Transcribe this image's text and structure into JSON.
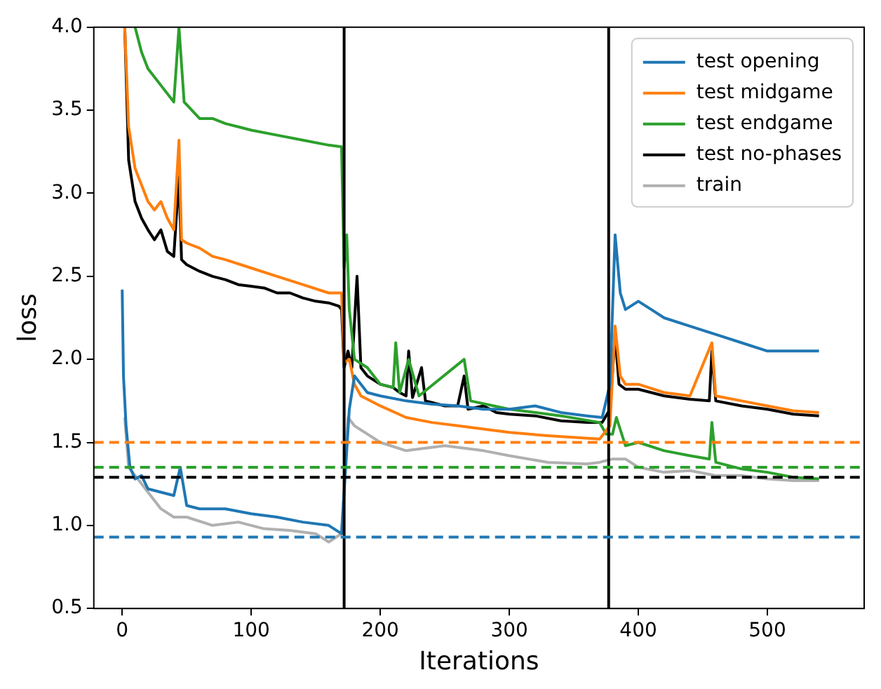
{
  "chart_data": {
    "type": "line",
    "xlabel": "Iterations",
    "ylabel": "loss",
    "xlim": [
      -22,
      575
    ],
    "ylim": [
      0.5,
      4.0
    ],
    "xticks": [
      0,
      100,
      200,
      300,
      400,
      500
    ],
    "yticks": [
      {
        "value": 0.5,
        "label": "0.5"
      },
      {
        "value": 1,
        "label": "1.0"
      },
      {
        "value": 1.5,
        "label": "1.5"
      },
      {
        "value": 2,
        "label": "2.0"
      },
      {
        "value": 2.5,
        "label": "2.5"
      },
      {
        "value": 3,
        "label": "3.0"
      },
      {
        "value": 3.5,
        "label": "3.5"
      },
      {
        "value": 4,
        "label": "4.0"
      }
    ],
    "grid": false,
    "legend": "top right",
    "marker": "none",
    "line_style": "solid",
    "series": [
      {
        "name": "test opening",
        "color": "#1f77b4",
        "x": [
          0,
          1,
          3,
          6,
          10,
          15,
          20,
          30,
          40,
          45,
          50,
          60,
          80,
          100,
          120,
          140,
          160,
          170,
          172,
          176,
          180,
          190,
          200,
          220,
          240,
          260,
          280,
          300,
          320,
          340,
          360,
          372,
          378,
          382,
          386,
          390,
          400,
          410,
          420,
          440,
          460,
          480,
          500,
          520,
          540
        ],
        "values": [
          2.42,
          1.9,
          1.6,
          1.35,
          1.28,
          1.3,
          1.22,
          1.2,
          1.18,
          1.35,
          1.12,
          1.1,
          1.1,
          1.07,
          1.05,
          1.02,
          1.0,
          0.95,
          1.2,
          1.7,
          1.9,
          1.8,
          1.78,
          1.75,
          1.73,
          1.72,
          1.7,
          1.7,
          1.72,
          1.68,
          1.66,
          1.65,
          1.85,
          2.75,
          2.4,
          2.3,
          2.35,
          2.3,
          2.25,
          2.2,
          2.15,
          2.1,
          2.05,
          2.05,
          2.05
        ]
      },
      {
        "name": "test midgame",
        "color": "#ff7f0e",
        "x": [
          2,
          5,
          10,
          20,
          25,
          30,
          35,
          40,
          44,
          46,
          50,
          60,
          70,
          80,
          100,
          120,
          140,
          160,
          170,
          172,
          176,
          180,
          185,
          200,
          220,
          240,
          260,
          280,
          300,
          330,
          370,
          378,
          382,
          386,
          390,
          400,
          420,
          440,
          457,
          460,
          480,
          500,
          520,
          540
        ],
        "values": [
          4.0,
          3.4,
          3.15,
          2.95,
          2.9,
          2.95,
          2.85,
          2.78,
          3.32,
          2.72,
          2.7,
          2.67,
          2.62,
          2.6,
          2.55,
          2.5,
          2.45,
          2.4,
          2.4,
          1.98,
          2.0,
          1.85,
          1.78,
          1.72,
          1.65,
          1.62,
          1.6,
          1.58,
          1.56,
          1.54,
          1.52,
          1.6,
          2.2,
          1.9,
          1.85,
          1.85,
          1.8,
          1.78,
          2.1,
          1.78,
          1.75,
          1.72,
          1.69,
          1.68
        ]
      },
      {
        "name": "test endgame",
        "color": "#2ca02c",
        "x": [
          10,
          15,
          20,
          30,
          40,
          44,
          48,
          60,
          70,
          80,
          90,
          100,
          120,
          140,
          160,
          170,
          172,
          174,
          176,
          180,
          190,
          200,
          210,
          212,
          215,
          222,
          230,
          265,
          270,
          300,
          340,
          370,
          375,
          380,
          383,
          390,
          400,
          420,
          440,
          455,
          457,
          460,
          480,
          500,
          520,
          540
        ],
        "values": [
          4.0,
          3.85,
          3.75,
          3.65,
          3.55,
          4.0,
          3.55,
          3.45,
          3.45,
          3.42,
          3.4,
          3.38,
          3.35,
          3.32,
          3.29,
          3.28,
          2.55,
          2.75,
          2.3,
          2.0,
          1.95,
          1.85,
          1.83,
          2.1,
          1.8,
          2.0,
          1.78,
          2.0,
          1.75,
          1.7,
          1.66,
          1.62,
          1.55,
          1.55,
          1.65,
          1.48,
          1.5,
          1.45,
          1.42,
          1.4,
          1.62,
          1.38,
          1.34,
          1.32,
          1.29,
          1.28
        ]
      },
      {
        "name": "test no-phases",
        "color": "#000000",
        "x": [
          2,
          5,
          10,
          15,
          20,
          25,
          30,
          35,
          40,
          44,
          46,
          50,
          60,
          70,
          80,
          90,
          100,
          110,
          120,
          130,
          140,
          150,
          160,
          168,
          170,
          172,
          175,
          178,
          182,
          185,
          190,
          200,
          210,
          215,
          220,
          222,
          225,
          232,
          235,
          240,
          250,
          260,
          265,
          268,
          280,
          290,
          300,
          320,
          340,
          360,
          372,
          378,
          382,
          385,
          390,
          400,
          410,
          420,
          440,
          455,
          457,
          460,
          480,
          500,
          520,
          540
        ],
        "values": [
          4.0,
          3.2,
          2.95,
          2.85,
          2.78,
          2.72,
          2.78,
          2.65,
          2.62,
          3.1,
          2.6,
          2.57,
          2.53,
          2.5,
          2.48,
          2.45,
          2.44,
          2.43,
          2.4,
          2.4,
          2.37,
          2.35,
          2.34,
          2.32,
          2.3,
          1.95,
          2.05,
          1.95,
          2.5,
          1.95,
          1.9,
          1.85,
          1.83,
          1.8,
          1.78,
          2.05,
          1.77,
          1.95,
          1.75,
          1.74,
          1.72,
          1.72,
          1.9,
          1.7,
          1.72,
          1.68,
          1.67,
          1.66,
          1.63,
          1.62,
          1.62,
          1.7,
          2.15,
          1.85,
          1.82,
          1.82,
          1.8,
          1.78,
          1.76,
          1.75,
          2.05,
          1.75,
          1.72,
          1.7,
          1.67,
          1.66
        ]
      },
      {
        "name": "train",
        "color": "#b0b0b0",
        "x": [
          2,
          5,
          10,
          20,
          30,
          40,
          50,
          70,
          90,
          110,
          130,
          150,
          160,
          170,
          175,
          180,
          190,
          200,
          220,
          250,
          280,
          300,
          330,
          360,
          370,
          380,
          390,
          400,
          420,
          440,
          460,
          480,
          500,
          520,
          540
        ],
        "values": [
          1.65,
          1.35,
          1.3,
          1.2,
          1.1,
          1.05,
          1.05,
          1.0,
          1.02,
          0.98,
          0.97,
          0.95,
          0.9,
          0.95,
          1.65,
          1.6,
          1.55,
          1.5,
          1.45,
          1.48,
          1.45,
          1.42,
          1.38,
          1.37,
          1.38,
          1.4,
          1.4,
          1.35,
          1.32,
          1.33,
          1.3,
          1.3,
          1.28,
          1.27,
          1.27
        ]
      }
    ],
    "ref_lines": [
      {
        "axis": "x",
        "value": 172,
        "color": "#000000",
        "line_style": "solid"
      },
      {
        "axis": "x",
        "value": 377,
        "color": "#000000",
        "line_style": "solid"
      },
      {
        "axis": "y",
        "value": 1.5,
        "color": "#ff7f0e",
        "line_style": "dashed"
      },
      {
        "axis": "y",
        "value": 1.35,
        "color": "#2ca02c",
        "line_style": "dashed"
      },
      {
        "axis": "y",
        "value": 1.29,
        "color": "#000000",
        "line_style": "dashed"
      },
      {
        "axis": "y",
        "value": 0.93,
        "color": "#1f77b4",
        "line_style": "dashed"
      }
    ]
  }
}
